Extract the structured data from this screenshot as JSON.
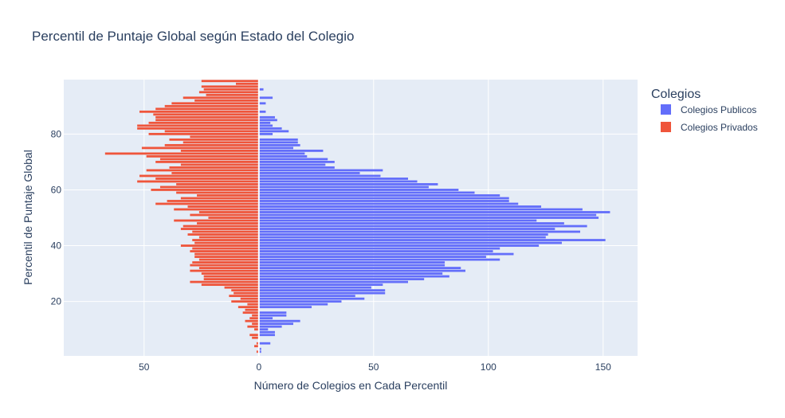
{
  "chart_data": {
    "type": "bar",
    "orientation": "horizontal",
    "title": "Percentil de Puntaje Global según Estado del Colegio",
    "xlabel": "Número de Colegios en Cada Percentil",
    "ylabel": "Percentil de Puntaje Global",
    "xlim": [
      -85,
      165
    ],
    "ylim": [
      0.5,
      99.5
    ],
    "x_ticks": [
      {
        "value": -50,
        "label": "50"
      },
      {
        "value": 0,
        "label": "0"
      },
      {
        "value": 50,
        "label": "50"
      },
      {
        "value": 100,
        "label": "100"
      },
      {
        "value": 150,
        "label": "150"
      }
    ],
    "y_ticks": [
      20,
      40,
      60,
      80
    ],
    "legend": {
      "title": "Colegios",
      "position": "right"
    },
    "grid": true,
    "percentiles": [
      1,
      2,
      3,
      4,
      5,
      6,
      7,
      8,
      9,
      10,
      11,
      12,
      13,
      14,
      15,
      16,
      17,
      18,
      19,
      20,
      21,
      22,
      23,
      24,
      25,
      26,
      27,
      28,
      29,
      30,
      31,
      32,
      33,
      34,
      35,
      36,
      37,
      38,
      39,
      40,
      41,
      42,
      43,
      44,
      45,
      46,
      47,
      48,
      49,
      50,
      51,
      52,
      53,
      54,
      55,
      56,
      57,
      58,
      59,
      60,
      61,
      62,
      63,
      64,
      65,
      66,
      67,
      68,
      69,
      70,
      71,
      72,
      73,
      74,
      75,
      76,
      77,
      78,
      79,
      80,
      81,
      82,
      83,
      84,
      85,
      86,
      87,
      88,
      89,
      90,
      91,
      92,
      93,
      94,
      95,
      96,
      97,
      98,
      99
    ],
    "series": [
      {
        "name": "Colegios Publicos",
        "color": "#636efa",
        "values": [
          0,
          1,
          1,
          0,
          5,
          0,
          0,
          7,
          7,
          4,
          10,
          15,
          18,
          6,
          12,
          12,
          0,
          23,
          30,
          36,
          46,
          42,
          55,
          55,
          49,
          54,
          65,
          72,
          83,
          80,
          90,
          88,
          81,
          81,
          105,
          99,
          111,
          102,
          105,
          122,
          132,
          151,
          125,
          126,
          140,
          129,
          143,
          133,
          121,
          148,
          147,
          153,
          141,
          123,
          113,
          109,
          109,
          105,
          94,
          87,
          74,
          78,
          69,
          65,
          53,
          44,
          54,
          33,
          29,
          33,
          30,
          21,
          20,
          28,
          15,
          18,
          17,
          17,
          0,
          6,
          13,
          10,
          6,
          5,
          8,
          7,
          0,
          3,
          0,
          0,
          3,
          0,
          6,
          0,
          0,
          2,
          0,
          0,
          0
        ]
      },
      {
        "name": "Colegios Privados",
        "color": "#ef553b",
        "values": [
          0,
          -1,
          0,
          -2,
          -1,
          0,
          -3,
          -4,
          0,
          -2,
          -5,
          -3,
          -6,
          -4,
          -3,
          -7,
          -6,
          -9,
          -5,
          -12,
          -8,
          -13,
          -11,
          -12,
          -15,
          -25,
          -30,
          -24,
          -24,
          -25,
          -30,
          -26,
          -30,
          -29,
          -26,
          -28,
          -28,
          -30,
          -29,
          -34,
          -28,
          -29,
          -26,
          -31,
          -29,
          -34,
          -33,
          -27,
          -37,
          -22,
          -30,
          -26,
          -37,
          -31,
          -45,
          -40,
          -34,
          -27,
          -36,
          -47,
          -43,
          -36,
          -53,
          -45,
          -52,
          -38,
          -49,
          -39,
          -34,
          -45,
          -43,
          -49,
          -67,
          -34,
          -51,
          -41,
          -33,
          -39,
          -30,
          -48,
          -41,
          -53,
          -53,
          -48,
          -45,
          -45,
          -46,
          -52,
          -45,
          -41,
          -38,
          -28,
          -33,
          -23,
          -26,
          -24,
          -25,
          -10,
          -25
        ]
      }
    ]
  }
}
